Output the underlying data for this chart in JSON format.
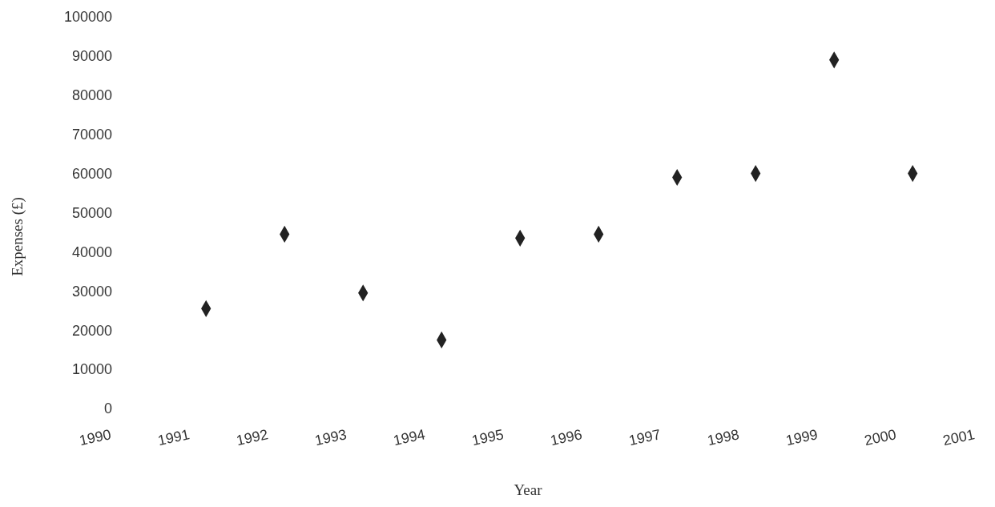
{
  "chart_data": {
    "type": "scatter",
    "xlabel": "Year",
    "ylabel": "Expenses (£)",
    "x": [
      1991.4,
      1992.4,
      1993.4,
      1994.4,
      1995.4,
      1996.4,
      1997.4,
      1998.4,
      1999.4,
      2000.4
    ],
    "values": [
      25500,
      44500,
      29500,
      17500,
      43500,
      44500,
      59000,
      60000,
      89000,
      60000
    ],
    "color": "#222222",
    "marker": "diamond",
    "xlim": [
      1990,
      2001
    ],
    "xticks": [
      1990,
      1991,
      1992,
      1993,
      1994,
      1995,
      1996,
      1997,
      1998,
      1999,
      2000,
      2001
    ],
    "ylim": [
      0,
      100000
    ],
    "yticks": [
      0,
      10000,
      20000,
      30000,
      40000,
      50000,
      60000,
      70000,
      80000,
      90000,
      100000
    ]
  }
}
